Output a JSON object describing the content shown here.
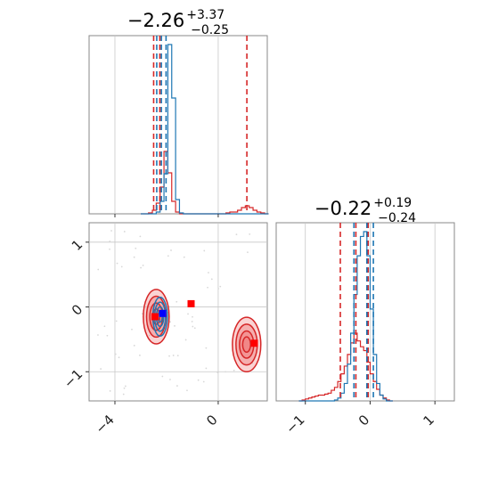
{
  "chart_data": {
    "type": "corner",
    "titles": [
      {
        "value": "−2.26",
        "sup": "+3.37",
        "sub": "−0.25"
      },
      {
        "value": "−0.22",
        "sup": "+0.19",
        "sub": "−0.24"
      }
    ],
    "colors": {
      "red": "#d62728",
      "blue": "#1f77b4",
      "red_fill": "#f08080",
      "grid": "#c8c8c8"
    },
    "param1": {
      "range": [
        -5.0,
        1.9
      ],
      "ticks": [
        {
          "v": -4,
          "label": "−4"
        },
        {
          "v": 0,
          "label": "0"
        }
      ],
      "red_quantiles": [
        -2.5,
        -2.26,
        1.11
      ],
      "blue_quantiles": [
        -2.38,
        -2.2,
        -2.02
      ]
    },
    "param2": {
      "range": [
        -1.45,
        1.3
      ],
      "ticks": [
        {
          "v": -1,
          "label": "−1"
        },
        {
          "v": 0,
          "label": "0"
        },
        {
          "v": 1,
          "label": "1"
        }
      ],
      "red_quantiles": [
        -0.46,
        -0.22,
        -0.03
      ],
      "blue_quantiles": [
        -0.25,
        -0.05,
        0.05
      ]
    },
    "hist1": {
      "bin_start": -3.0,
      "bin_width": 0.15,
      "red": [
        0,
        0,
        1,
        4,
        12,
        30,
        70,
        46,
        14,
        2,
        0,
        0,
        0,
        0,
        0,
        0,
        0,
        0,
        0,
        0,
        0,
        0,
        1,
        2,
        2,
        4,
        7,
        9,
        7,
        4,
        2,
        1,
        0
      ],
      "blue": [
        0,
        0,
        0,
        0,
        2,
        14,
        45,
        190,
        130,
        16,
        1,
        0,
        0,
        0,
        0,
        0,
        0,
        0,
        0,
        0,
        0,
        0,
        0,
        0,
        0,
        0,
        0,
        0,
        0,
        0,
        0,
        0,
        0
      ]
    },
    "hist2": {
      "bin_start": -1.1,
      "bin_width": 0.05,
      "red": [
        0,
        1,
        2,
        3,
        4,
        5,
        6,
        6,
        7,
        8,
        11,
        14,
        20,
        28,
        36,
        48,
        60,
        70,
        62,
        56,
        52,
        40,
        28,
        20,
        12,
        6,
        3,
        1,
        0
      ],
      "blue": [
        0,
        0,
        0,
        0,
        0,
        0,
        0,
        0,
        0,
        0,
        0,
        1,
        3,
        8,
        18,
        38,
        70,
        110,
        150,
        170,
        175,
        150,
        95,
        48,
        18,
        6,
        2,
        0,
        0
      ]
    },
    "blobs": [
      {
        "cx": -2.4,
        "cy": -0.15,
        "rx": 0.5,
        "ry": 0.42,
        "color": "red",
        "fill": true
      },
      {
        "cx": 1.1,
        "cy": -0.58,
        "rx": 0.55,
        "ry": 0.42,
        "color": "red",
        "fill": true
      },
      {
        "cx": -2.25,
        "cy": -0.15,
        "rx": 0.28,
        "ry": 0.3,
        "color": "blue",
        "fill": false
      }
    ],
    "markers": [
      {
        "x": -2.15,
        "y": -0.1,
        "color": "blue"
      },
      {
        "x": -2.45,
        "y": -0.15,
        "color": "red"
      },
      {
        "x": -1.05,
        "y": 0.05,
        "color": "red"
      },
      {
        "x": 1.4,
        "y": -0.56,
        "color": "red"
      }
    ]
  }
}
